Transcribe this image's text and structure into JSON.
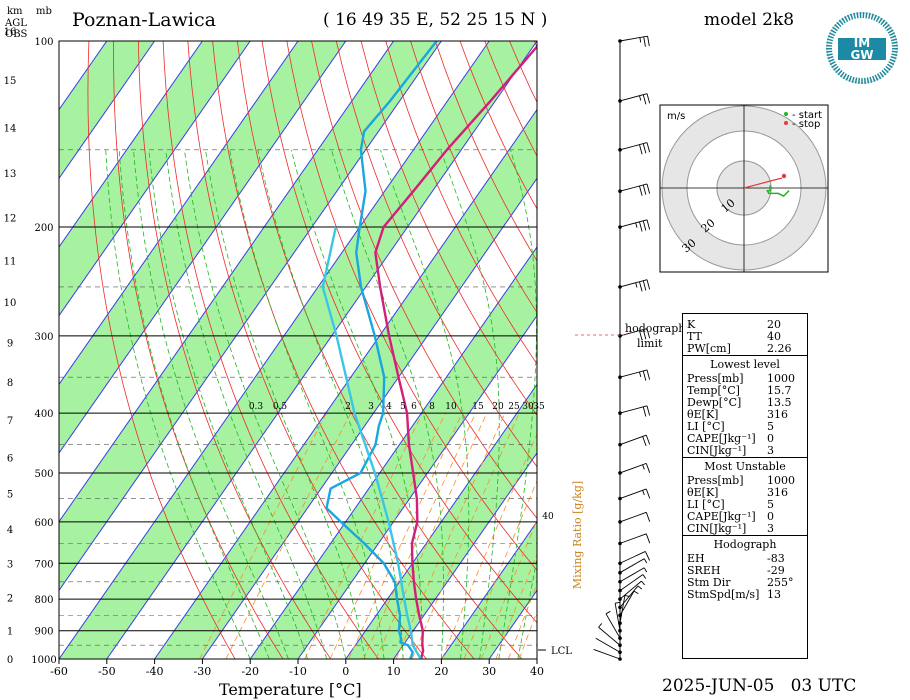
{
  "header": {
    "station": "Poznan-Lawica",
    "coords": "( 16 49 35 E, 52 25 15 N )",
    "model": "model 2k8",
    "datetime": "2025-JUN-05   03 UTC",
    "km_label": "km",
    "agl_label": "AGL",
    "obs_label": "OBS",
    "mb_label": "mb"
  },
  "logo": {
    "text": "IMGW",
    "top": "IM",
    "bottom": "GW"
  },
  "colors": {
    "temperature": "#d21f7a",
    "dewpoint": "#19a7e0",
    "parcel": "#3cc6e6",
    "green_band": "#a6f2a0",
    "isotherm": "#3a3aee",
    "dry_adiabat": "#ee2a2a",
    "moist_adiabat": "#22b422",
    "mixing_ratio": "#ff8c28"
  },
  "hodograph": {
    "unit": "m/s",
    "legend_start": "- start",
    "legend_stop": "- stop",
    "ring_labels": [
      "10",
      "20",
      "30"
    ],
    "limit_label_1": "hodograph",
    "limit_label_2": "limit"
  },
  "indices": {
    "general": [
      {
        "k": "K",
        "v": "20"
      },
      {
        "k": "TT",
        "v": "40"
      },
      {
        "k": "PW[cm]",
        "v": "2.26"
      }
    ],
    "lowest_title": "Lowest level",
    "lowest": [
      {
        "k": "Press[mb]",
        "v": "1000"
      },
      {
        "k": "Temp[°C]",
        "v": "15.7"
      },
      {
        "k": "Dewp[°C]",
        "v": "13.5"
      },
      {
        "k": "θE[K]",
        "v": "316"
      },
      {
        "k": "LI [°C]",
        "v": "5"
      },
      {
        "k": "CAPE[Jkg⁻¹]",
        "v": "0"
      },
      {
        "k": "CIN[Jkg⁻¹]",
        "v": "3"
      }
    ],
    "unstable_title": "Most Unstable",
    "unstable": [
      {
        "k": "Press[mb]",
        "v": "1000"
      },
      {
        "k": "θE[K]",
        "v": "316"
      },
      {
        "k": "LI [°C]",
        "v": "5"
      },
      {
        "k": "CAPE[Jkg⁻¹]",
        "v": "0"
      },
      {
        "k": "CIN[Jkg⁻¹]",
        "v": "3"
      }
    ],
    "hodo_title": "Hodograph",
    "hodo": [
      {
        "k": "EH",
        "v": "-83"
      },
      {
        "k": "SREH",
        "v": "-29"
      },
      {
        "k": "Stm Dir",
        "v": "255°"
      },
      {
        "k": "StmSpd[m/s]",
        "v": "13"
      }
    ]
  },
  "chart_data": {
    "type": "line",
    "xlabel": "Temperature [°C]",
    "mixing_label": "Mixing Ratio [g/kg]",
    "lcl_label": "LCL",
    "xlim": [
      -60,
      40
    ],
    "ylim": [
      1000,
      100
    ],
    "x_ticks": [
      -60,
      -50,
      -40,
      -30,
      -20,
      -10,
      0,
      10,
      20,
      30,
      40
    ],
    "pressure_ticks": [
      1000,
      900,
      800,
      700,
      600,
      500,
      400,
      300,
      200,
      100
    ],
    "km_ticks": [
      0,
      1,
      2,
      3,
      4,
      5,
      6,
      7,
      8,
      9,
      10,
      11,
      12,
      13,
      14,
      15,
      16
    ],
    "mixing_ratio_labels": [
      "0.3",
      "0.5",
      "2",
      "3",
      "4",
      "5",
      "6",
      "8",
      "10",
      "15",
      "20",
      "25",
      "30",
      "35"
    ],
    "mixing_ratio_40": "40",
    "series": [
      {
        "name": "temperature",
        "points": [
          [
            1000,
            15.7
          ],
          [
            970,
            15.0
          ],
          [
            950,
            14.0
          ],
          [
            925,
            13.0
          ],
          [
            900,
            12.0
          ],
          [
            850,
            9.0
          ],
          [
            800,
            6.0
          ],
          [
            750,
            3.0
          ],
          [
            700,
            0.0
          ],
          [
            650,
            -3.0
          ],
          [
            600,
            -5.0
          ],
          [
            550,
            -8.5
          ],
          [
            500,
            -13.0
          ],
          [
            450,
            -18.0
          ],
          [
            400,
            -23.0
          ],
          [
            350,
            -30.0
          ],
          [
            300,
            -38.0
          ],
          [
            250,
            -47.0
          ],
          [
            220,
            -53.0
          ],
          [
            200,
            -55.0
          ],
          [
            175,
            -54.0
          ],
          [
            150,
            -53.0
          ],
          [
            125,
            -51.0
          ],
          [
            100,
            -49.0
          ]
        ]
      },
      {
        "name": "dewpoint",
        "points": [
          [
            1000,
            13.5
          ],
          [
            975,
            13.0
          ],
          [
            950,
            11.0
          ],
          [
            940,
            9.0
          ],
          [
            925,
            8.5
          ],
          [
            900,
            7.0
          ],
          [
            850,
            5.0
          ],
          [
            800,
            2.0
          ],
          [
            750,
            -1.0
          ],
          [
            700,
            -6.0
          ],
          [
            650,
            -13.0
          ],
          [
            600,
            -21.0
          ],
          [
            570,
            -26.0
          ],
          [
            530,
            -28.0
          ],
          [
            500,
            -24.0
          ],
          [
            450,
            -25.0
          ],
          [
            420,
            -27.0
          ],
          [
            400,
            -28.0
          ],
          [
            350,
            -33.0
          ],
          [
            300,
            -41.0
          ],
          [
            250,
            -51.0
          ],
          [
            220,
            -57.0
          ],
          [
            200,
            -60.0
          ],
          [
            175,
            -64.0
          ],
          [
            150,
            -71.0
          ],
          [
            140,
            -73.0
          ],
          [
            125,
            -72.0
          ],
          [
            100,
            -71.0
          ]
        ]
      },
      {
        "name": "parcel",
        "points": [
          [
            1000,
            15.7
          ],
          [
            950,
            12.0
          ],
          [
            900,
            9.5
          ],
          [
            850,
            6.5
          ],
          [
            800,
            3.5
          ],
          [
            700,
            -3.0
          ],
          [
            600,
            -11.0
          ],
          [
            500,
            -21.0
          ],
          [
            400,
            -34.0
          ],
          [
            300,
            -49.0
          ],
          [
            250,
            -59.0
          ],
          [
            200,
            -65.0
          ]
        ]
      }
    ],
    "wind_profile": [
      {
        "p": 1000,
        "dir": 110,
        "spd": 3
      },
      {
        "p": 975,
        "dir": 120,
        "spd": 4
      },
      {
        "p": 950,
        "dir": 130,
        "spd": 5
      },
      {
        "p": 925,
        "dir": 150,
        "spd": 5
      },
      {
        "p": 900,
        "dir": 170,
        "spd": 5
      },
      {
        "p": 875,
        "dir": 190,
        "spd": 5
      },
      {
        "p": 850,
        "dir": 210,
        "spd": 6
      },
      {
        "p": 825,
        "dir": 220,
        "spd": 6
      },
      {
        "p": 800,
        "dir": 230,
        "spd": 7
      },
      {
        "p": 775,
        "dir": 235,
        "spd": 7
      },
      {
        "p": 750,
        "dir": 240,
        "spd": 8
      },
      {
        "p": 725,
        "dir": 240,
        "spd": 9
      },
      {
        "p": 700,
        "dir": 245,
        "spd": 10
      },
      {
        "p": 650,
        "dir": 250,
        "spd": 12
      },
      {
        "p": 600,
        "dir": 250,
        "spd": 14
      },
      {
        "p": 550,
        "dir": 250,
        "spd": 16
      },
      {
        "p": 500,
        "dir": 250,
        "spd": 18
      },
      {
        "p": 450,
        "dir": 250,
        "spd": 20
      },
      {
        "p": 400,
        "dir": 255,
        "spd": 22
      },
      {
        "p": 350,
        "dir": 255,
        "spd": 25
      },
      {
        "p": 300,
        "dir": 255,
        "spd": 30
      },
      {
        "p": 250,
        "dir": 255,
        "spd": 35
      },
      {
        "p": 200,
        "dir": 255,
        "spd": 35
      },
      {
        "p": 175,
        "dir": 255,
        "spd": 32
      },
      {
        "p": 150,
        "dir": 255,
        "spd": 30
      },
      {
        "p": 125,
        "dir": 255,
        "spd": 28
      },
      {
        "p": 100,
        "dir": 260,
        "spd": 27
      }
    ],
    "hodograph_trace": [
      [
        3,
        -1
      ],
      [
        3,
        1
      ],
      [
        2,
        1
      ],
      [
        2.5,
        2
      ],
      [
        6,
        2
      ],
      [
        8,
        3
      ],
      [
        9,
        2
      ],
      [
        10,
        1
      ]
    ]
  }
}
